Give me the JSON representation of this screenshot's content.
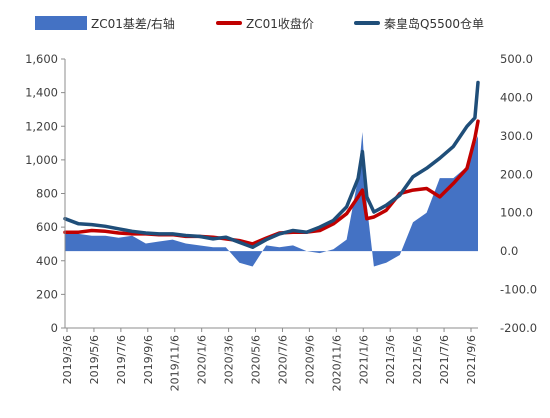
{
  "chart_data": {
    "type": "line",
    "legend": {
      "placement": "top",
      "items": [
        {
          "label": "ZC01基差/右轴",
          "kind": "area",
          "color": "#4472c4"
        },
        {
          "label": "ZC01收盘价",
          "kind": "line",
          "color": "#c00000"
        },
        {
          "label": "秦皇岛Q5500仓单",
          "kind": "line",
          "color": "#1f4e79"
        }
      ]
    },
    "x_tick_labels": [
      "2019/3/6",
      "2019/5/6",
      "2019/7/6",
      "2019/9/6",
      "2019/11/6",
      "2020/1/6",
      "2020/3/6",
      "2020/5/6",
      "2020/7/6",
      "2020/9/6",
      "2020/11/6",
      "2021/1/6",
      "2021/3/6",
      "2021/5/6",
      "2021/7/6",
      "2021/9/6"
    ],
    "y_left": {
      "min": 0,
      "max": 1600,
      "ticks": [
        0,
        200,
        400,
        600,
        800,
        1000,
        1200,
        1400,
        1600
      ],
      "tick_labels": [
        "0",
        "200",
        "400",
        "600",
        "800",
        "1,000",
        "1,200",
        "1,400",
        "1,600"
      ]
    },
    "y_right": {
      "min": -200,
      "max": 500,
      "ticks": [
        -200,
        -100,
        0,
        100,
        200,
        300,
        400,
        500
      ],
      "tick_labels": [
        "-200.0",
        "-100.0",
        "0.0",
        "100.0",
        "200.0",
        "300.0",
        "400.0",
        "500.0"
      ]
    },
    "grid": false,
    "x": [
      "2019-03-06",
      "2019-04-06",
      "2019-05-06",
      "2019-06-06",
      "2019-07-06",
      "2019-08-06",
      "2019-09-06",
      "2019-10-06",
      "2019-11-06",
      "2019-12-06",
      "2020-01-06",
      "2020-02-06",
      "2020-03-06",
      "2020-04-06",
      "2020-05-06",
      "2020-06-06",
      "2020-07-06",
      "2020-08-06",
      "2020-09-06",
      "2020-10-06",
      "2020-11-06",
      "2020-12-06",
      "2021-01-01",
      "2021-01-11",
      "2021-01-21",
      "2021-02-06",
      "2021-03-06",
      "2021-04-06",
      "2021-05-06",
      "2021-06-06",
      "2021-07-06",
      "2021-08-06",
      "2021-09-06",
      "2021-09-24",
      "2021-10-01"
    ],
    "series": [
      {
        "name": "ZC01基差/右轴",
        "type": "area",
        "axis": "right",
        "color": "#4472c4",
        "values": [
          50,
          45,
          40,
          40,
          35,
          40,
          20,
          25,
          30,
          20,
          15,
          10,
          10,
          -30,
          -40,
          15,
          10,
          15,
          0,
          -5,
          5,
          30,
          190,
          310,
          120,
          -40,
          -30,
          -10,
          75,
          100,
          190,
          190,
          220,
          280,
          300
        ]
      },
      {
        "name": "ZC01收盘价",
        "type": "line",
        "axis": "left",
        "color": "#c00000",
        "values": [
          570,
          570,
          580,
          575,
          565,
          560,
          560,
          555,
          555,
          545,
          545,
          540,
          530,
          520,
          500,
          535,
          565,
          570,
          570,
          580,
          620,
          680,
          780,
          820,
          650,
          660,
          700,
          800,
          820,
          830,
          780,
          860,
          950,
          1130,
          1230
        ]
      },
      {
        "name": "秦皇岛Q5500仓单",
        "type": "line",
        "axis": "left",
        "color": "#1f4e79",
        "values": [
          650,
          620,
          615,
          605,
          590,
          575,
          565,
          560,
          560,
          550,
          545,
          530,
          540,
          510,
          480,
          525,
          560,
          580,
          570,
          600,
          640,
          720,
          890,
          1050,
          780,
          690,
          730,
          790,
          900,
          950,
          1010,
          1080,
          1200,
          1250,
          1460
        ]
      }
    ]
  }
}
